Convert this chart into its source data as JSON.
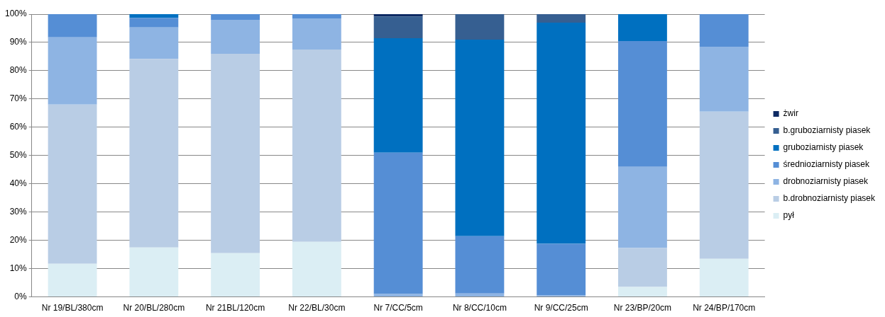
{
  "chart_data": {
    "type": "bar",
    "stacked": true,
    "categories": [
      "Nr 19/BL/380cm",
      "Nr 20/BL/280cm",
      "Nr 21BL/120cm",
      "Nr 22/BL/30cm",
      "Nr 7/CC/5cm",
      "Nr 8/CC/10cm",
      "Nr 9/CC/25cm",
      "Nr 23/BP/20cm",
      "Nr 24/BP/170cm"
    ],
    "series": [
      {
        "name": "pył",
        "color": "#dbeef4",
        "values": [
          11.7,
          17.5,
          15.5,
          19.5,
          0,
          0,
          0,
          3.5,
          13.5
        ]
      },
      {
        "name": "b.drobnoziarnisty piasek",
        "color": "#b9cde5",
        "values": [
          56.3,
          66.7,
          70.5,
          68,
          0,
          0,
          0,
          13.8,
          52
        ]
      },
      {
        "name": "drobnoziarnisty piasek",
        "color": "#8eb4e3",
        "values": [
          23.8,
          11.1,
          12,
          11,
          1,
          1.2,
          0.5,
          28.7,
          23
        ]
      },
      {
        "name": "średnioziarnisty piasek",
        "color": "#558ed5",
        "values": [
          8.2,
          3.4,
          2,
          1.5,
          50,
          20.3,
          18.3,
          44.5,
          11.5
        ]
      },
      {
        "name": "gruboziarnisty piasek",
        "color": "#0070c0",
        "values": [
          0,
          1.3,
          0,
          0,
          40.5,
          69.5,
          78.2,
          9.5,
          0
        ]
      },
      {
        "name": "b.gruboziarnisty piasek",
        "color": "#365f91",
        "values": [
          0,
          0,
          0,
          0,
          7.7,
          9,
          3,
          0,
          0
        ]
      },
      {
        "name": "żwir",
        "color": "#0d2a63",
        "values": [
          0,
          0,
          0,
          0,
          0.8,
          0,
          0,
          0,
          0
        ]
      }
    ],
    "ylim": [
      0,
      100
    ],
    "yticks": [
      {
        "value": 0,
        "label": "0%"
      },
      {
        "value": 10,
        "label": "10%"
      },
      {
        "value": 20,
        "label": "20%"
      },
      {
        "value": 30,
        "label": "30%"
      },
      {
        "value": 40,
        "label": "40%"
      },
      {
        "value": 50,
        "label": "50%"
      },
      {
        "value": 60,
        "label": "60%"
      },
      {
        "value": 70,
        "label": "70%"
      },
      {
        "value": 80,
        "label": "80%"
      },
      {
        "value": 90,
        "label": "90%"
      },
      {
        "value": 100,
        "label": "100%"
      }
    ],
    "grid": "y",
    "legend": "right"
  }
}
